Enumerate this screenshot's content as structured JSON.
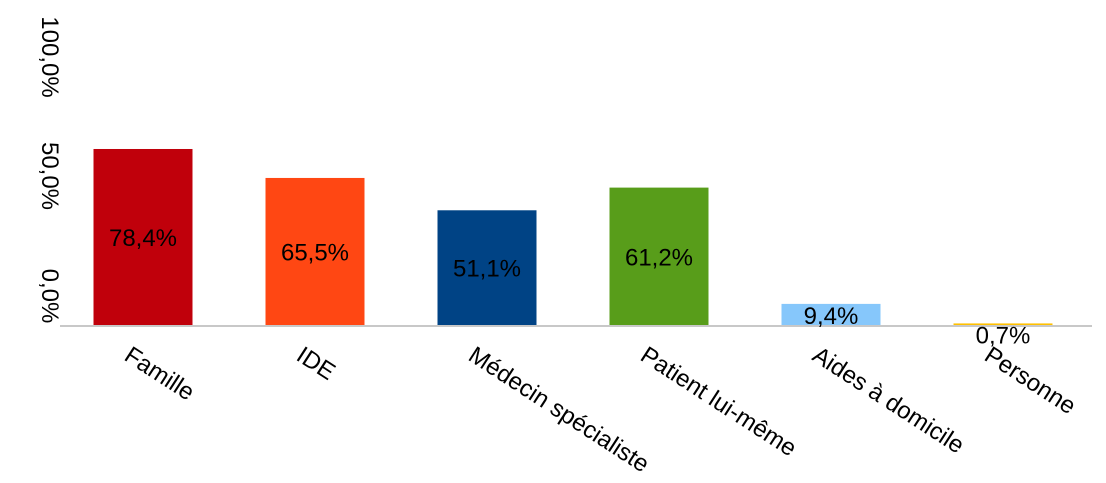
{
  "chart_data": {
    "type": "bar",
    "title": "",
    "xlabel": "",
    "ylabel": "",
    "ylim": [
      0,
      100
    ],
    "grid": false,
    "legend": "none",
    "y_ticks": [
      "0,0%",
      "50,0%",
      "100,0%"
    ],
    "categories": [
      "Famille",
      "IDE",
      "Médecin spécialiste",
      "Patient lui-même",
      "Aides à domicile",
      "Personne"
    ],
    "values": [
      78.4,
      65.5,
      51.1,
      61.2,
      9.4,
      0.7
    ],
    "data_labels": [
      "78,4%",
      "65,5%",
      "51,1%",
      "61,2%",
      "9,4%",
      "0,7%"
    ],
    "colors": [
      "#c0000b",
      "#ff4713",
      "#004385",
      "#589d1a",
      "#86c7fb",
      "#ffc000"
    ]
  }
}
